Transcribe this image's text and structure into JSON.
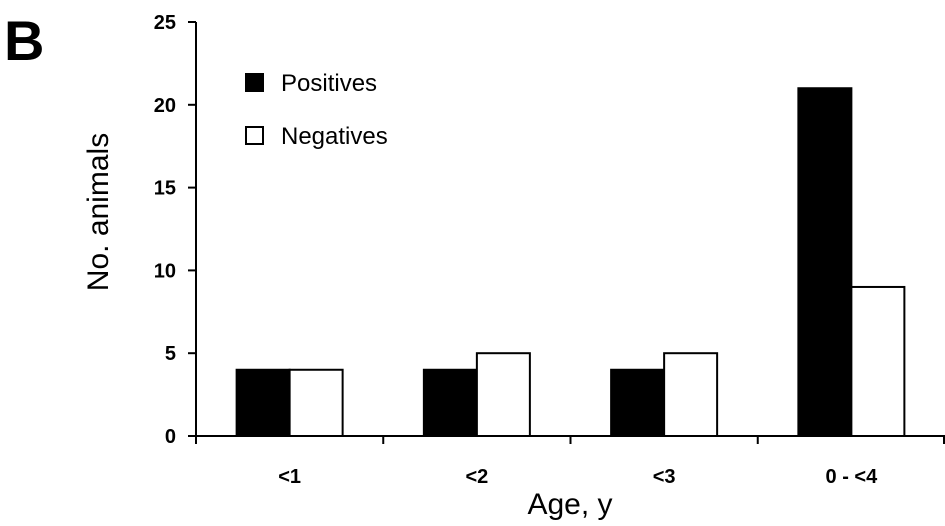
{
  "panel_label": "B",
  "chart_data": {
    "type": "bar",
    "categories": [
      "<1",
      "<2",
      "<3",
      "0 - <4"
    ],
    "series": [
      {
        "name": "Positives",
        "values": [
          4,
          4,
          4,
          21
        ],
        "fill": "#000000"
      },
      {
        "name": "Negatives",
        "values": [
          4,
          5,
          5,
          9
        ],
        "fill": "#ffffff"
      }
    ],
    "xlabel": "Age, y",
    "ylabel": "No. animals",
    "ylim": [
      0,
      25
    ],
    "yticks": [
      0,
      5,
      10,
      15,
      20,
      25
    ],
    "grid": false,
    "legend_position": "top-left"
  }
}
